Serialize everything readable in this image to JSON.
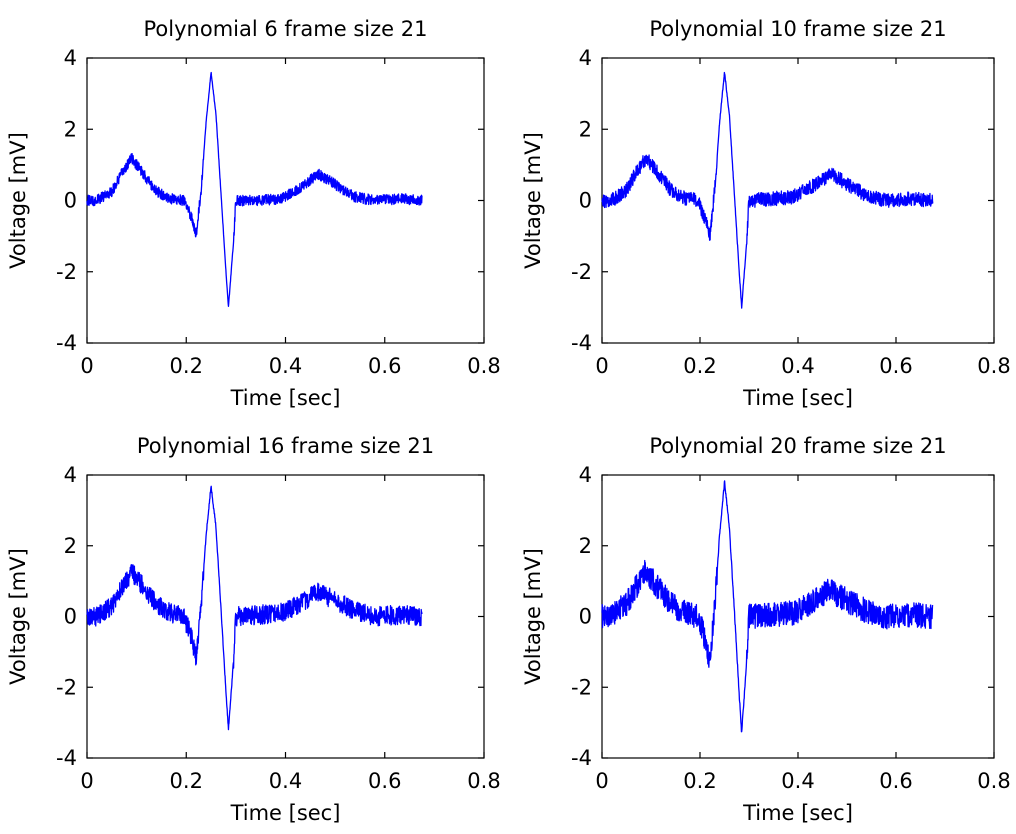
{
  "colors": {
    "trace": "#0000ff",
    "axes": "#000000",
    "background": "#ffffff"
  },
  "chart_data": [
    {
      "type": "line",
      "title": "Polynomial 6 frame size 21",
      "xlabel": "Time [sec]",
      "ylabel": "Voltage [mV]",
      "xlim": [
        0,
        0.8
      ],
      "ylim": [
        -4,
        4
      ],
      "xticks": [
        0,
        0.2,
        0.4,
        0.6,
        0.8
      ],
      "xtick_labels": [
        "0",
        "0.2",
        "0.4",
        "0.6",
        "0.8"
      ],
      "yticks": [
        -4,
        -2,
        0,
        2,
        4
      ],
      "ytick_labels": [
        "-4",
        "-2",
        "0",
        "2",
        "4"
      ],
      "grid": false,
      "series": [
        {
          "noise_amplitude_mV": 0.3,
          "points": [
            [
              0,
              0.0
            ],
            [
              0.02,
              0.0
            ],
            [
              0.05,
              0.25
            ],
            [
              0.07,
              0.75
            ],
            [
              0.09,
              1.2
            ],
            [
              0.11,
              0.8
            ],
            [
              0.14,
              0.25
            ],
            [
              0.17,
              0.05
            ],
            [
              0.195,
              0.0
            ],
            [
              0.21,
              -0.45
            ],
            [
              0.22,
              -0.95
            ],
            [
              0.23,
              0.3
            ],
            [
              0.24,
              2.2
            ],
            [
              0.25,
              3.6
            ],
            [
              0.26,
              2.4
            ],
            [
              0.27,
              0.2
            ],
            [
              0.28,
              -2.0
            ],
            [
              0.285,
              -3.0
            ],
            [
              0.295,
              -1.2
            ],
            [
              0.3,
              0.0
            ],
            [
              0.35,
              0.0
            ],
            [
              0.39,
              0.05
            ],
            [
              0.43,
              0.35
            ],
            [
              0.465,
              0.75
            ],
            [
              0.5,
              0.45
            ],
            [
              0.54,
              0.1
            ],
            [
              0.58,
              0.0
            ],
            [
              0.63,
              0.05
            ],
            [
              0.675,
              0.0
            ]
          ]
        }
      ]
    },
    {
      "type": "line",
      "title": "Polynomial 10 frame size 21",
      "xlabel": "Time [sec]",
      "ylabel": "Voltage [mV]",
      "xlim": [
        0,
        0.8
      ],
      "ylim": [
        -4,
        4
      ],
      "xticks": [
        0,
        0.2,
        0.4,
        0.6,
        0.8
      ],
      "xtick_labels": [
        "0",
        "0.2",
        "0.4",
        "0.6",
        "0.8"
      ],
      "yticks": [
        -4,
        -2,
        0,
        2,
        4
      ],
      "ytick_labels": [
        "-4",
        "-2",
        "0",
        "2",
        "4"
      ],
      "grid": false,
      "series": [
        {
          "noise_amplitude_mV": 0.4,
          "points": [
            [
              0,
              0.0
            ],
            [
              0.02,
              0.0
            ],
            [
              0.05,
              0.3
            ],
            [
              0.07,
              0.8
            ],
            [
              0.09,
              1.2
            ],
            [
              0.11,
              0.85
            ],
            [
              0.14,
              0.3
            ],
            [
              0.17,
              0.05
            ],
            [
              0.195,
              0.0
            ],
            [
              0.21,
              -0.5
            ],
            [
              0.22,
              -1.0
            ],
            [
              0.23,
              0.3
            ],
            [
              0.24,
              2.2
            ],
            [
              0.25,
              3.6
            ],
            [
              0.26,
              2.4
            ],
            [
              0.27,
              0.2
            ],
            [
              0.28,
              -2.0
            ],
            [
              0.285,
              -3.0
            ],
            [
              0.295,
              -1.2
            ],
            [
              0.3,
              0.0
            ],
            [
              0.35,
              0.05
            ],
            [
              0.39,
              0.1
            ],
            [
              0.43,
              0.4
            ],
            [
              0.47,
              0.75
            ],
            [
              0.5,
              0.45
            ],
            [
              0.54,
              0.15
            ],
            [
              0.58,
              0.0
            ],
            [
              0.63,
              0.05
            ],
            [
              0.675,
              0.0
            ]
          ]
        }
      ]
    },
    {
      "type": "line",
      "title": "Polynomial 16 frame size 21",
      "xlabel": "Time [sec]",
      "ylabel": "Voltage [mV]",
      "xlim": [
        0,
        0.8
      ],
      "ylim": [
        -4,
        4
      ],
      "xticks": [
        0,
        0.2,
        0.4,
        0.6,
        0.8
      ],
      "xtick_labels": [
        "0",
        "0.2",
        "0.4",
        "0.6",
        "0.8"
      ],
      "yticks": [
        -4,
        -2,
        0,
        2,
        4
      ],
      "ytick_labels": [
        "-4",
        "-2",
        "0",
        "2",
        "4"
      ],
      "grid": false,
      "series": [
        {
          "noise_amplitude_mV": 0.55,
          "points": [
            [
              0,
              0.0
            ],
            [
              0.02,
              0.0
            ],
            [
              0.05,
              0.3
            ],
            [
              0.07,
              0.8
            ],
            [
              0.09,
              1.25
            ],
            [
              0.11,
              0.9
            ],
            [
              0.14,
              0.35
            ],
            [
              0.17,
              0.1
            ],
            [
              0.195,
              0.0
            ],
            [
              0.21,
              -0.55
            ],
            [
              0.22,
              -1.15
            ],
            [
              0.23,
              0.3
            ],
            [
              0.24,
              2.3
            ],
            [
              0.25,
              3.7
            ],
            [
              0.26,
              2.5
            ],
            [
              0.27,
              0.2
            ],
            [
              0.28,
              -2.1
            ],
            [
              0.285,
              -3.2
            ],
            [
              0.295,
              -1.3
            ],
            [
              0.3,
              0.0
            ],
            [
              0.35,
              0.05
            ],
            [
              0.39,
              0.1
            ],
            [
              0.43,
              0.35
            ],
            [
              0.465,
              0.7
            ],
            [
              0.5,
              0.45
            ],
            [
              0.54,
              0.15
            ],
            [
              0.58,
              0.0
            ],
            [
              0.63,
              0.05
            ],
            [
              0.675,
              0.0
            ]
          ]
        }
      ]
    },
    {
      "type": "line",
      "title": "Polynomial 20 frame size 21",
      "xlabel": "Time [sec]",
      "ylabel": "Voltage [mV]",
      "xlim": [
        0,
        0.8
      ],
      "ylim": [
        -4,
        4
      ],
      "xticks": [
        0,
        0.2,
        0.4,
        0.6,
        0.8
      ],
      "xtick_labels": [
        "0",
        "0.2",
        "0.4",
        "0.6",
        "0.8"
      ],
      "yticks": [
        -4,
        -2,
        0,
        2,
        4
      ],
      "ytick_labels": [
        "-4",
        "-2",
        "0",
        "2",
        "4"
      ],
      "grid": false,
      "series": [
        {
          "noise_amplitude_mV": 0.7,
          "points": [
            [
              0,
              0.0
            ],
            [
              0.02,
              0.05
            ],
            [
              0.05,
              0.35
            ],
            [
              0.07,
              0.85
            ],
            [
              0.09,
              1.3
            ],
            [
              0.11,
              0.9
            ],
            [
              0.14,
              0.35
            ],
            [
              0.17,
              0.1
            ],
            [
              0.195,
              0.0
            ],
            [
              0.21,
              -0.6
            ],
            [
              0.22,
              -1.25
            ],
            [
              0.23,
              0.3
            ],
            [
              0.24,
              2.3
            ],
            [
              0.25,
              3.8
            ],
            [
              0.26,
              2.5
            ],
            [
              0.27,
              0.2
            ],
            [
              0.28,
              -2.2
            ],
            [
              0.285,
              -3.3
            ],
            [
              0.295,
              -1.3
            ],
            [
              0.3,
              0.0
            ],
            [
              0.35,
              0.05
            ],
            [
              0.39,
              0.1
            ],
            [
              0.43,
              0.4
            ],
            [
              0.465,
              0.75
            ],
            [
              0.5,
              0.45
            ],
            [
              0.54,
              0.15
            ],
            [
              0.58,
              0.0
            ],
            [
              0.63,
              0.05
            ],
            [
              0.675,
              0.0
            ]
          ]
        }
      ]
    }
  ]
}
